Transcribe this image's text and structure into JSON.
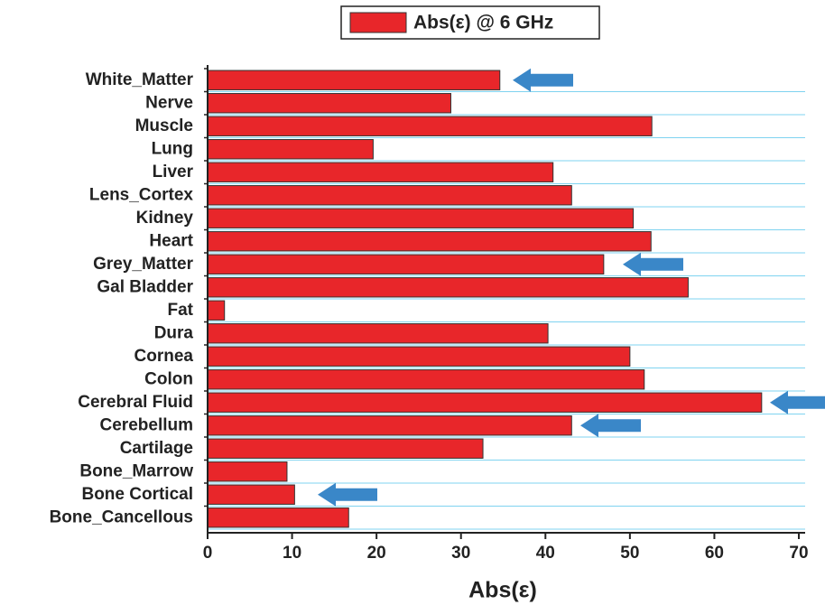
{
  "chart_data": {
    "type": "bar",
    "orientation": "horizontal",
    "legend_label": "Abs(ε) @ 6 GHz",
    "x_label": "Abs(ε)",
    "categories": [
      "White_Matter",
      "Nerve",
      "Muscle",
      "Lung",
      "Liver",
      "Lens_Cortex",
      "Kidney",
      "Heart",
      "Grey_Matter",
      "Gal Bladder",
      "Fat",
      "Dura",
      "Cornea",
      "Colon",
      "Cerebral Fluid",
      "Cerebellum",
      "Cartilage",
      "Bone_Marrow",
      "Bone Cortical",
      "Bone_Cancellous"
    ],
    "values": [
      34.6,
      28.8,
      52.6,
      19.6,
      40.9,
      43.1,
      50.4,
      52.5,
      46.9,
      56.9,
      2,
      40.3,
      50,
      51.7,
      65.6,
      43.1,
      32.6,
      9.4,
      10.3,
      16.7
    ],
    "color": "#e8262a",
    "xlim": [
      0,
      70
    ],
    "xticks": [
      0,
      10,
      20,
      30,
      40,
      50,
      60,
      70
    ]
  }
}
